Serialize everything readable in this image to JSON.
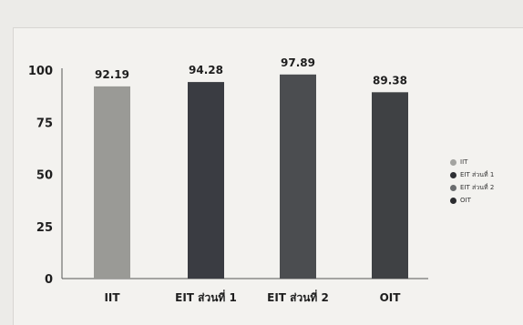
{
  "chart_data": {
    "type": "bar",
    "categories": [
      "IIT",
      "EIT ส่วนที่ 1",
      "EIT ส่วนที่ 2",
      "OIT"
    ],
    "values": [
      92.19,
      94.28,
      97.89,
      89.38
    ],
    "value_labels": [
      "92.19",
      "94.28",
      "97.89",
      "89.38"
    ],
    "colors": [
      "#9a9a96",
      "#3a3c42",
      "#4b4d50",
      "#3f4144"
    ],
    "legend_colors": [
      "#a3a3a0",
      "#2e2f33",
      "#6a6c6e",
      "#2a2b2e"
    ],
    "legend": [
      "IIT",
      "EIT ส่วนที่ 1",
      "EIT ส่วนที่ 2",
      "OIT"
    ],
    "legend_position": "right",
    "ylim": [
      0,
      100
    ],
    "yticks": [
      0,
      25,
      50,
      75,
      100
    ],
    "grid": false,
    "title": "",
    "xlabel": "",
    "ylabel": ""
  }
}
